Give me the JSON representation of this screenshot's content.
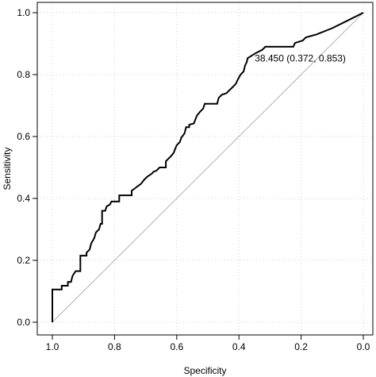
{
  "chart_data": {
    "type": "line",
    "xlabel": "Specificity",
    "ylabel": "Sensitivity",
    "x_reversed": true,
    "xlim": [
      1.0,
      0.0
    ],
    "ylim": [
      0.0,
      1.0
    ],
    "grid": true,
    "x_ticks": [
      {
        "value": 1.0,
        "label": "1.0"
      },
      {
        "value": 0.8,
        "label": "0.8"
      },
      {
        "value": 0.6,
        "label": "0.6"
      },
      {
        "value": 0.4,
        "label": "0.4"
      },
      {
        "value": 0.2,
        "label": "0.2"
      },
      {
        "value": 0.0,
        "label": "0.0"
      }
    ],
    "y_ticks": [
      {
        "value": 0.0,
        "label": "0.0"
      },
      {
        "value": 0.2,
        "label": "0.2"
      },
      {
        "value": 0.4,
        "label": "0.4"
      },
      {
        "value": 0.6,
        "label": "0.6"
      },
      {
        "value": 0.8,
        "label": "0.8"
      },
      {
        "value": 1.0,
        "label": "1.0"
      }
    ],
    "annotation": {
      "text": "38.450 (0.372, 0.853)",
      "x": 0.372,
      "y": 0.853
    },
    "diagonal": {
      "from": [
        1.0,
        0.0
      ],
      "to": [
        0.0,
        1.0
      ]
    },
    "colors": {
      "curve": "#000000",
      "diagonal": "#b0b0b0",
      "grid": "#d0d0d0",
      "frame": "#000000"
    },
    "series": [
      {
        "points": [
          [
            1.0,
            0.0
          ],
          [
            1.0,
            0.106
          ],
          [
            0.97,
            0.106
          ],
          [
            0.97,
            0.118
          ],
          [
            0.95,
            0.118
          ],
          [
            0.95,
            0.13
          ],
          [
            0.94,
            0.13
          ],
          [
            0.935,
            0.15
          ],
          [
            0.925,
            0.165
          ],
          [
            0.91,
            0.165
          ],
          [
            0.91,
            0.215
          ],
          [
            0.89,
            0.215
          ],
          [
            0.89,
            0.225
          ],
          [
            0.88,
            0.235
          ],
          [
            0.875,
            0.255
          ],
          [
            0.865,
            0.272
          ],
          [
            0.86,
            0.29
          ],
          [
            0.85,
            0.3
          ],
          [
            0.845,
            0.318
          ],
          [
            0.84,
            0.318
          ],
          [
            0.84,
            0.36
          ],
          [
            0.83,
            0.36
          ],
          [
            0.825,
            0.375
          ],
          [
            0.815,
            0.38
          ],
          [
            0.81,
            0.39
          ],
          [
            0.785,
            0.39
          ],
          [
            0.785,
            0.41
          ],
          [
            0.745,
            0.41
          ],
          [
            0.745,
            0.425
          ],
          [
            0.735,
            0.432
          ],
          [
            0.725,
            0.44
          ],
          [
            0.715,
            0.447
          ],
          [
            0.705,
            0.46
          ],
          [
            0.695,
            0.47
          ],
          [
            0.68,
            0.48
          ],
          [
            0.675,
            0.486
          ],
          [
            0.665,
            0.49
          ],
          [
            0.655,
            0.5
          ],
          [
            0.635,
            0.5
          ],
          [
            0.635,
            0.52
          ],
          [
            0.62,
            0.535
          ],
          [
            0.61,
            0.547
          ],
          [
            0.605,
            0.56
          ],
          [
            0.6,
            0.572
          ],
          [
            0.59,
            0.582
          ],
          [
            0.585,
            0.597
          ],
          [
            0.575,
            0.61
          ],
          [
            0.57,
            0.63
          ],
          [
            0.56,
            0.63
          ],
          [
            0.56,
            0.638
          ],
          [
            0.545,
            0.642
          ],
          [
            0.54,
            0.655
          ],
          [
            0.535,
            0.668
          ],
          [
            0.525,
            0.68
          ],
          [
            0.515,
            0.69
          ],
          [
            0.51,
            0.706
          ],
          [
            0.47,
            0.706
          ],
          [
            0.465,
            0.725
          ],
          [
            0.455,
            0.735
          ],
          [
            0.44,
            0.74
          ],
          [
            0.43,
            0.75
          ],
          [
            0.42,
            0.76
          ],
          [
            0.41,
            0.77
          ],
          [
            0.405,
            0.781
          ],
          [
            0.395,
            0.8
          ],
          [
            0.385,
            0.81
          ],
          [
            0.38,
            0.83
          ],
          [
            0.375,
            0.84
          ],
          [
            0.372,
            0.853
          ],
          [
            0.345,
            0.87
          ],
          [
            0.325,
            0.88
          ],
          [
            0.315,
            0.89
          ],
          [
            0.225,
            0.89
          ],
          [
            0.22,
            0.902
          ],
          [
            0.195,
            0.91
          ],
          [
            0.185,
            0.92
          ],
          [
            0.15,
            0.93
          ],
          [
            0.1,
            0.95
          ],
          [
            0.05,
            0.975
          ],
          [
            0.0,
            1.0
          ]
        ]
      }
    ]
  }
}
